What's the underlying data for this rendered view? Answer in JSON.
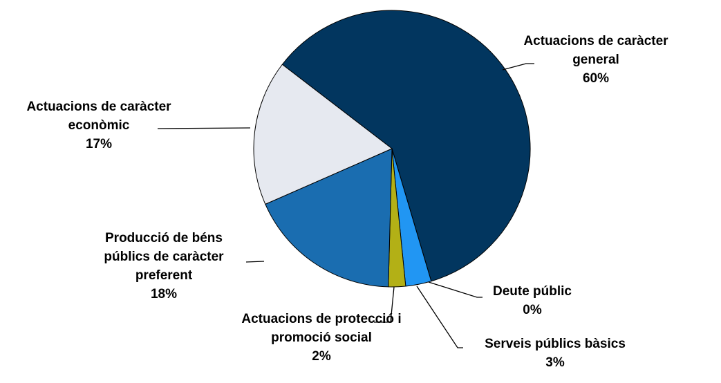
{
  "chart_data": {
    "type": "pie",
    "categories": [
      "Actuacions de caràcter general",
      "Deute públic",
      "Serveis públics bàsics",
      "Actuacions de protecció i promoció social",
      "Producció de béns públics de caràcter preferent",
      "Actuacions de caràcter econòmic"
    ],
    "values": [
      60,
      0,
      3,
      2,
      18,
      17
    ],
    "value_labels": [
      "60%",
      "0%",
      "3%",
      "2%",
      "18%",
      "17%"
    ],
    "colors": [
      "#02365f",
      "#1f8fe8",
      "#2196f3",
      "#b3b016",
      "#1a6db0",
      "#e6e9f0"
    ]
  }
}
